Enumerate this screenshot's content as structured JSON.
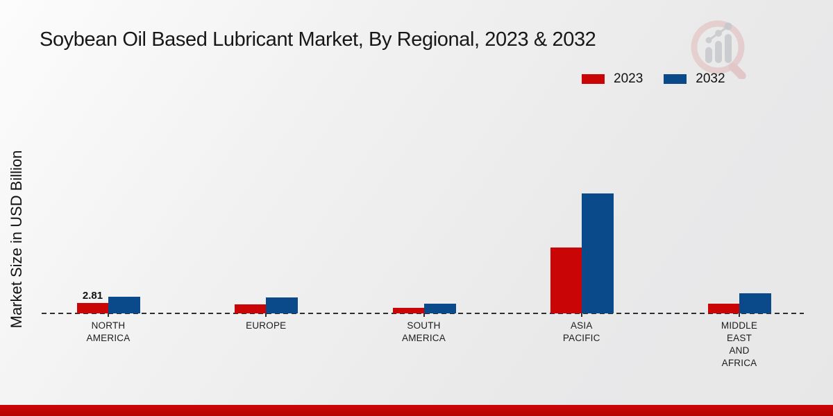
{
  "title": "Soybean Oil Based Lubricant Market, By Regional, 2023 & 2032",
  "ylabel": "Market Size in USD Billion",
  "legend": {
    "items": [
      {
        "label": "2023",
        "color": "#c90605"
      },
      {
        "label": "2032",
        "color": "#0a4a8a"
      }
    ]
  },
  "chart_data": {
    "type": "bar",
    "title": "Soybean Oil Based Lubricant Market, By Regional, 2023 & 2032",
    "xlabel": "",
    "ylabel": "Market Size in USD Billion",
    "unit": "USD Billion",
    "grid": false,
    "legend_position": "top-right",
    "axis_style": "dashed-zero-line-only",
    "categories": [
      "NORTH AMERICA",
      "EUROPE",
      "SOUTH AMERICA",
      "ASIA PACIFIC",
      "MIDDLE EAST AND AFRICA"
    ],
    "category_lines": [
      [
        "NORTH",
        "AMERICA"
      ],
      [
        "EUROPE"
      ],
      [
        "SOUTH",
        "AMERICA"
      ],
      [
        "ASIA",
        "PACIFIC"
      ],
      [
        "MIDDLE",
        "EAST",
        "AND",
        "AFRICA"
      ]
    ],
    "series": [
      {
        "name": "2023",
        "color": "#c90605",
        "values": [
          2.81,
          2.4,
          1.5,
          17.8,
          2.6
        ]
      },
      {
        "name": "2032",
        "color": "#0a4a8a",
        "values": [
          4.5,
          4.4,
          2.6,
          32.5,
          5.4
        ]
      }
    ],
    "annotations": [
      {
        "category_index": 0,
        "series_index": 0,
        "text": "2.81"
      }
    ]
  },
  "colors": {
    "series_2023": "#c90605",
    "series_2032": "#0a4a8a",
    "footer_strip": "#c10505",
    "axis_line": "#2e2e2e",
    "background": "#ededee"
  },
  "icons": {
    "logo": "magnifier-bar-chart-logo"
  }
}
